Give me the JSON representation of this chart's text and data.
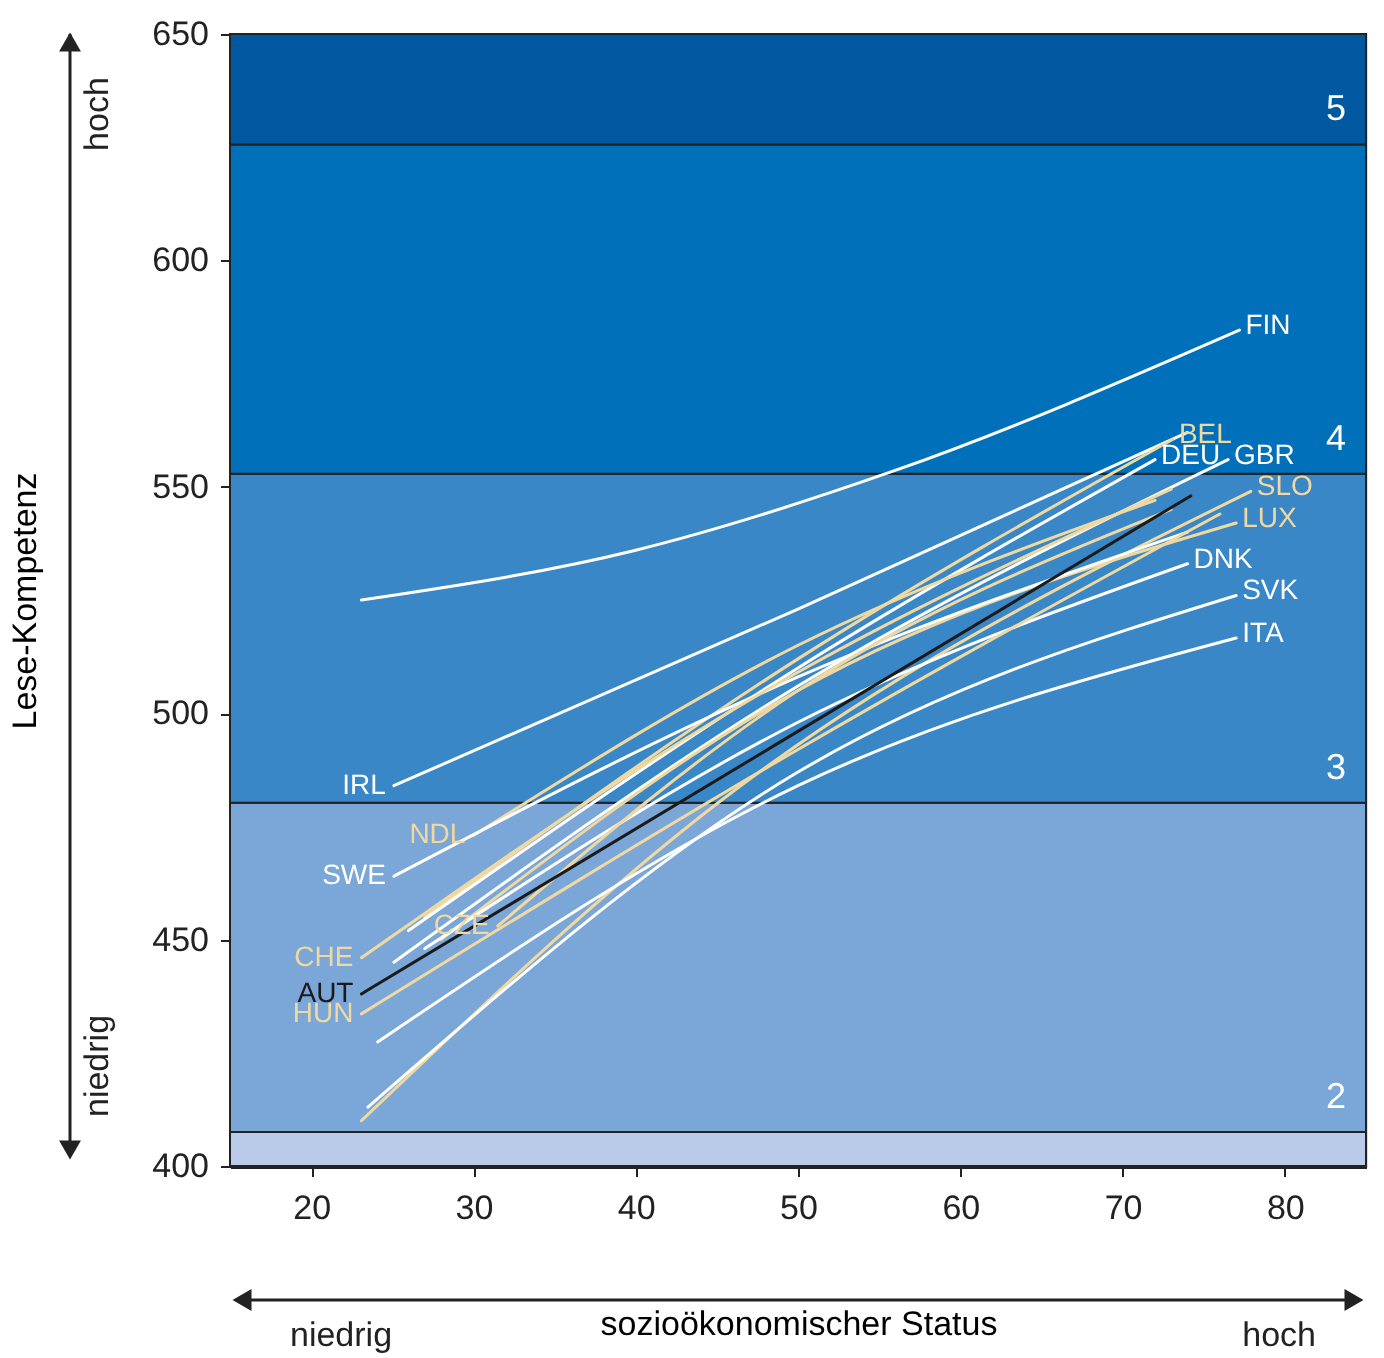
{
  "chart_data": {
    "type": "line",
    "xlabel": "sozioökonomischer Status",
    "ylabel": "Lese-Kompetenz",
    "xlim": [
      15,
      85
    ],
    "xticks": [
      20,
      30,
      40,
      50,
      60,
      70,
      80
    ],
    "ylim": [
      400,
      650
    ],
    "yticks": [
      400,
      450,
      500,
      550,
      600,
      650
    ],
    "marker": "none",
    "line_style": "solid",
    "bands": [
      {
        "axis": "y",
        "from": 400,
        "to": 407.5,
        "color": "#b9cbe8"
      },
      {
        "axis": "y",
        "from": 407.5,
        "to": 480.2,
        "label": "2",
        "color": "#7aa6d8"
      },
      {
        "axis": "y",
        "from": 480.2,
        "to": 552.9,
        "label": "3",
        "color": "#3a87c7"
      },
      {
        "axis": "y",
        "from": 552.9,
        "to": 625.6,
        "label": "4",
        "color": "#0070bb"
      },
      {
        "axis": "y",
        "from": 625.6,
        "to": 650,
        "label": "5",
        "color": "#0058a0"
      }
    ],
    "annotations": [
      "hoch",
      "niedrig",
      "niedrig",
      "hoch"
    ],
    "series": [
      {
        "name": "FIN",
        "color": "#ffffff",
        "x": [
          23.1,
          40,
          55.9,
          77.2
        ],
        "values": [
          525,
          536,
          553.5,
          584.6
        ]
      },
      {
        "name": "IRL",
        "color": "#ffffff",
        "x": [
          74,
          50,
          25.1
        ],
        "values": [
          562,
          523,
          484
        ]
      },
      {
        "name": "BEL",
        "color": "#f0d9a0",
        "x": [
          27,
          50,
          73.1
        ],
        "values": [
          455,
          512,
          560.5
        ]
      },
      {
        "name": "DEU",
        "color": "#ffffff",
        "x": [
          26,
          50,
          72
        ],
        "values": [
          452,
          510,
          556
        ]
      },
      {
        "name": "GBR",
        "color": "#ffffff",
        "x": [
          25.1,
          50,
          76.5
        ],
        "values": [
          445,
          506,
          556
        ]
      },
      {
        "name": "SLO",
        "color": "#f0d9a0",
        "x": [
          23.1,
          45,
          77.9
        ],
        "values": [
          410,
          480,
          549
        ]
      },
      {
        "name": "LUX",
        "color": "#f0d9a0",
        "x": [
          28,
          50,
          77
        ],
        "values": [
          450,
          505,
          542
        ]
      },
      {
        "name": "DNK",
        "color": "#ffffff",
        "x": [
          27,
          50,
          74
        ],
        "values": [
          448,
          498,
          533
        ]
      },
      {
        "name": "SVK",
        "color": "#ffffff",
        "x": [
          23.5,
          50,
          77
        ],
        "values": [
          413,
          487,
          526
        ]
      },
      {
        "name": "ITA",
        "color": "#ffffff",
        "x": [
          24.1,
          50,
          77
        ],
        "values": [
          427.4,
          484,
          516.6
        ]
      },
      {
        "name": "NDL",
        "color": "#f0d9a0",
        "x": [
          72,
          50,
          30
        ],
        "values": [
          547,
          515,
          473
        ]
      },
      {
        "name": "SWE",
        "color": "#ffffff",
        "x": [
          74,
          50,
          25.1
        ],
        "values": [
          540,
          508,
          464
        ]
      },
      {
        "name": "CZE",
        "color": "#f0d9a0",
        "x": [
          73,
          50,
          31.5
        ],
        "values": [
          545,
          505,
          453
        ]
      },
      {
        "name": "CHE",
        "color": "#f0d9a0",
        "x": [
          73,
          48,
          23.1
        ],
        "values": [
          549.5,
          505,
          446
        ]
      },
      {
        "name": "AUT",
        "color": "#1a1a1a",
        "x": [
          74.2,
          48.6,
          23.1
        ],
        "values": [
          548,
          493,
          438
        ]
      },
      {
        "name": "HUN",
        "color": "#f0d9a0",
        "x": [
          76,
          50,
          23.1
        ],
        "values": [
          544,
          492,
          433.6
        ]
      }
    ]
  }
}
